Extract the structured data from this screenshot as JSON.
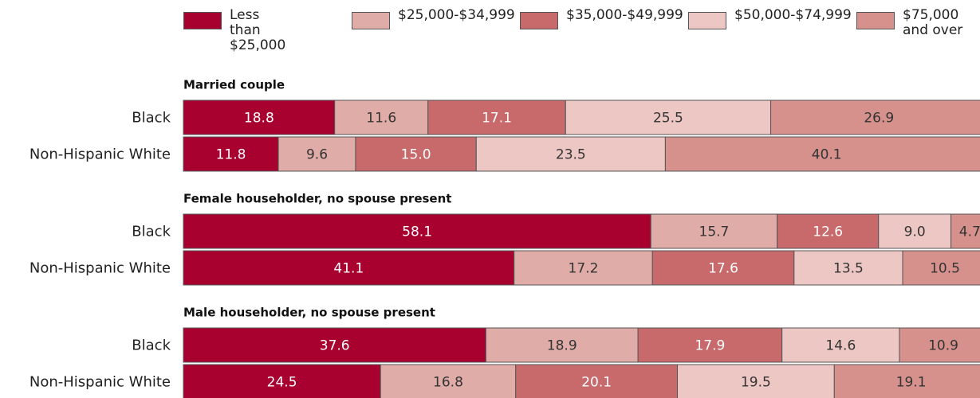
{
  "chart_data": {
    "type": "bar",
    "orientation": "horizontal",
    "stacked": true,
    "xlim": [
      0,
      100
    ],
    "groups": [
      {
        "name": "Married couple",
        "categories": [
          "Black",
          "Non-Hispanic White"
        ]
      },
      {
        "name": "Female householder, no spouse present",
        "categories": [
          "Black",
          "Non-Hispanic White"
        ]
      },
      {
        "name": "Male householder, no spouse present",
        "categories": [
          "Black",
          "Non-Hispanic White"
        ]
      }
    ],
    "series": [
      {
        "name": "Less than $25,000",
        "color": "#a8002f",
        "label_color": "#ffffff",
        "values": [
          18.8,
          11.8,
          58.1,
          41.1,
          37.6,
          24.5
        ]
      },
      {
        "name": "$25,000-$34,999",
        "color": "#e0aca8",
        "label_color": "#333333",
        "values": [
          11.6,
          9.6,
          15.7,
          17.2,
          18.9,
          16.8
        ]
      },
      {
        "name": "$35,000-$49,999",
        "color": "#c8696b",
        "label_color": "#ffffff",
        "values": [
          17.1,
          15.0,
          12.6,
          17.6,
          17.9,
          20.1
        ],
        "value_labels": [
          "17.1",
          "15.0",
          "12.6",
          "17.6",
          "17.9",
          "20.1"
        ]
      },
      {
        "name": "$50,000-$74,999",
        "color": "#edc7c3",
        "label_color": "#333333",
        "values": [
          25.5,
          23.5,
          9.0,
          13.5,
          14.6,
          19.5
        ],
        "value_labels": [
          "25.5",
          "23.5",
          "9.0",
          "13.5",
          "14.6",
          "19.5"
        ]
      },
      {
        "name": "$75,000 and over",
        "color": "#d6918d",
        "label_color": "#333333",
        "values": [
          26.9,
          40.1,
          4.7,
          10.5,
          10.9,
          19.1
        ]
      }
    ]
  }
}
